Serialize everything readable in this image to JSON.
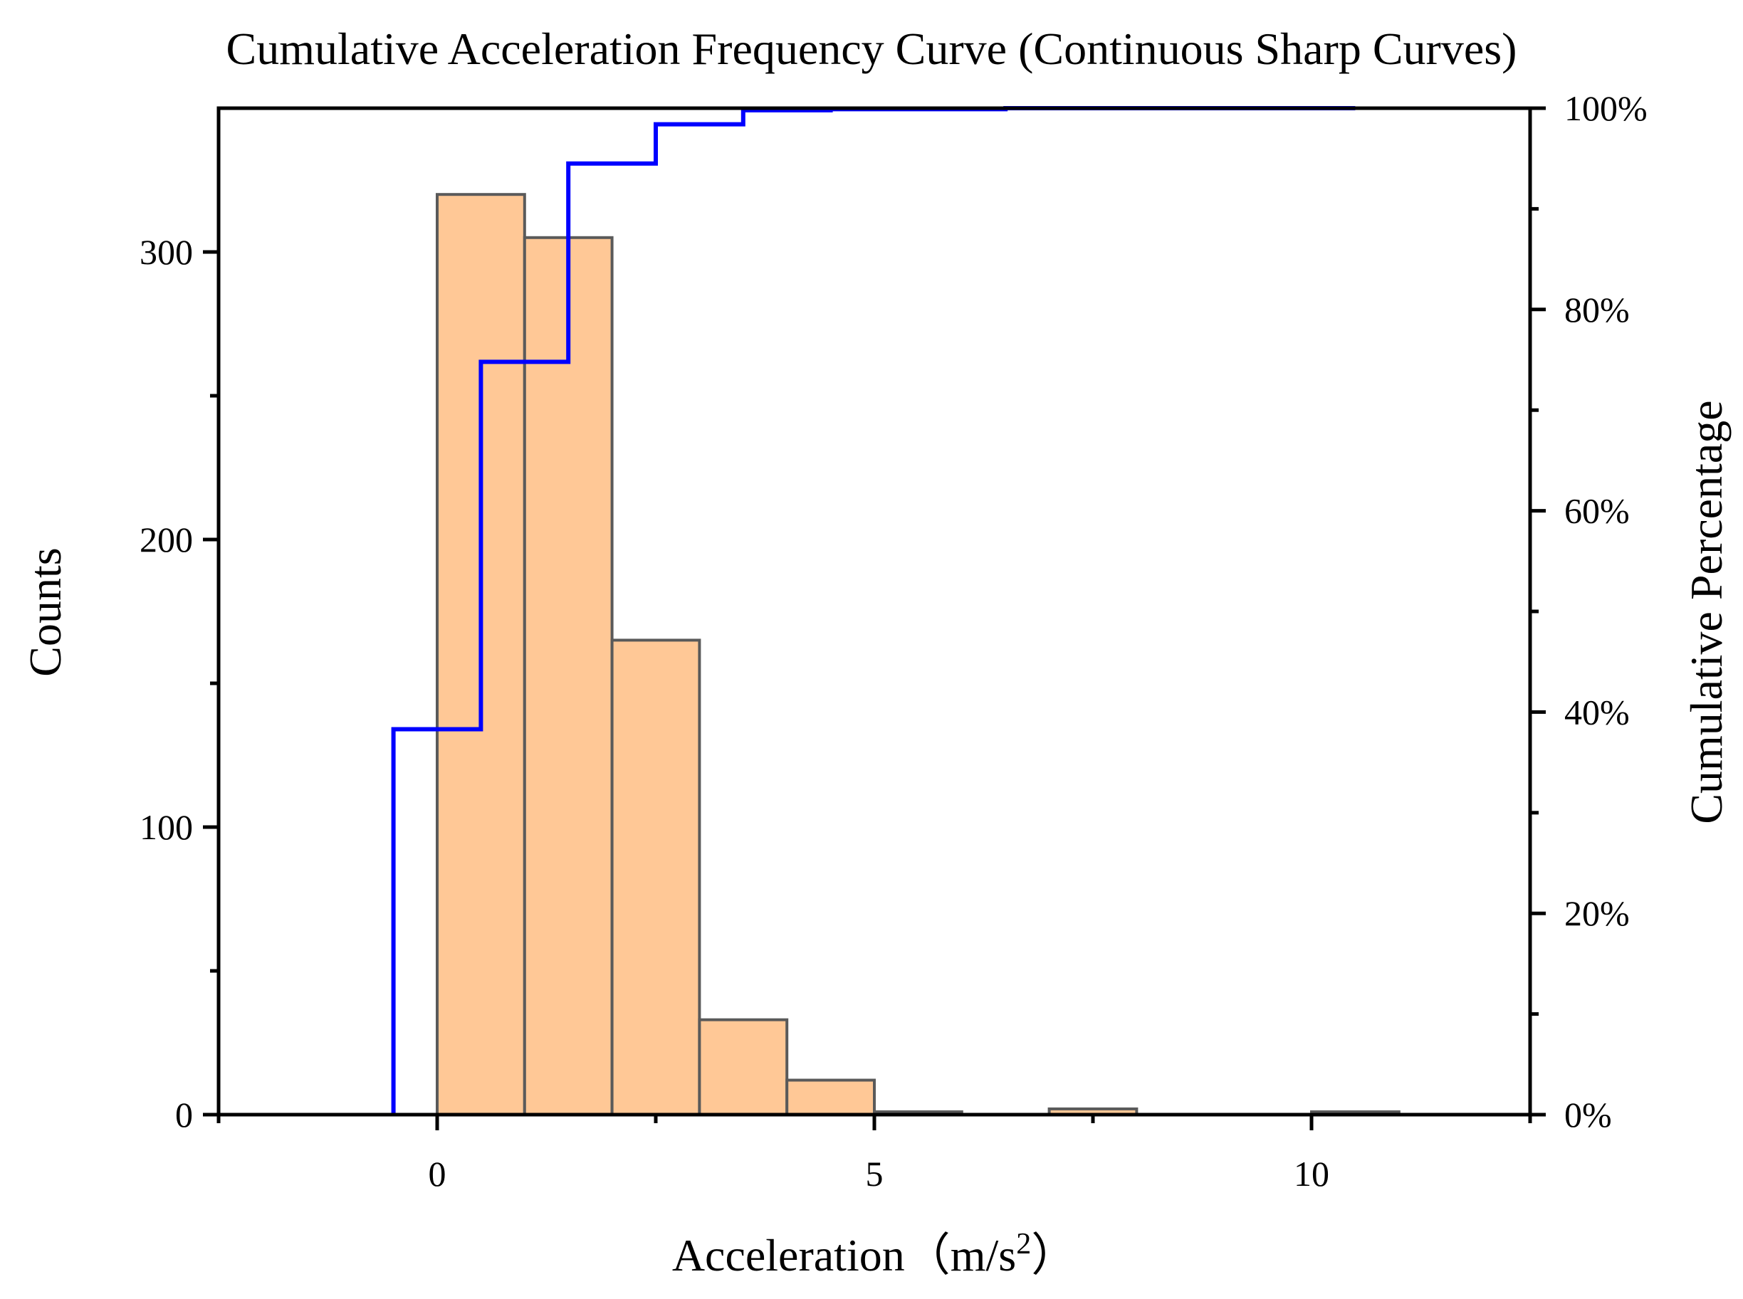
{
  "chart_data": {
    "type": "bar",
    "title": "Cumulative Acceleration Frequency Curve (Continuous Sharp Curves)",
    "xlabel": "Acceleration",
    "xlabel_unit_prefix": "（m/s",
    "xlabel_unit_exp": "2",
    "xlabel_unit_suffix": "）",
    "ylabel_left": "Counts",
    "ylabel_right": "Cumulative Percentage",
    "xlim": [
      -2.5,
      12.5
    ],
    "ylim": [
      0,
      350
    ],
    "y2lim": [
      0,
      100
    ],
    "x_ticks": [
      0,
      5,
      10
    ],
    "x_tick_labels": [
      "0",
      "5",
      "10"
    ],
    "x_minor_ticks": [
      -2.5,
      2.5,
      7.5,
      12.5
    ],
    "y_ticks": [
      0,
      100,
      200,
      300
    ],
    "y_tick_labels": [
      "0",
      "100",
      "200",
      "300"
    ],
    "y_minor_ticks": [
      50,
      150,
      250
    ],
    "y2_ticks": [
      0,
      20,
      40,
      60,
      80,
      100
    ],
    "y2_tick_labels": [
      "0%",
      "20%",
      "40%",
      "60%",
      "80%",
      "100%"
    ],
    "y2_minor_ticks": [
      10,
      30,
      50,
      70,
      90
    ],
    "histogram": {
      "name": "Counts",
      "color": "#ffc896",
      "edge_color": "#5a5a5a",
      "bins": [
        {
          "start": 0,
          "end": 1,
          "count": 320
        },
        {
          "start": 1,
          "end": 2,
          "count": 305
        },
        {
          "start": 2,
          "end": 3,
          "count": 165
        },
        {
          "start": 3,
          "end": 4,
          "count": 33
        },
        {
          "start": 4,
          "end": 5,
          "count": 12
        },
        {
          "start": 5,
          "end": 6,
          "count": 1
        },
        {
          "start": 6,
          "end": 7,
          "count": 0
        },
        {
          "start": 7,
          "end": 8,
          "count": 2
        },
        {
          "start": 8,
          "end": 9,
          "count": 0
        },
        {
          "start": 9,
          "end": 10,
          "count": 0
        },
        {
          "start": 10,
          "end": 11,
          "count": 1
        }
      ]
    },
    "cumulative": {
      "name": "Cumulative Percentage",
      "color": "#0000ff",
      "steps": [
        {
          "x0": -0.5,
          "x1": 0.5,
          "pct": 38.3
        },
        {
          "x0": 0.5,
          "x1": 1.5,
          "pct": 74.8
        },
        {
          "x0": 1.5,
          "x1": 2.5,
          "pct": 94.5
        },
        {
          "x0": 2.5,
          "x1": 3.5,
          "pct": 98.4
        },
        {
          "x0": 3.5,
          "x1": 4.5,
          "pct": 99.8
        },
        {
          "x0": 4.5,
          "x1": 5.5,
          "pct": 99.9
        },
        {
          "x0": 5.5,
          "x1": 6.5,
          "pct": 99.9
        },
        {
          "x0": 6.5,
          "x1": 7.5,
          "pct": 100
        },
        {
          "x0": 7.5,
          "x1": 8.5,
          "pct": 100
        },
        {
          "x0": 8.5,
          "x1": 9.5,
          "pct": 100
        },
        {
          "x0": 9.5,
          "x1": 10.5,
          "pct": 100
        }
      ]
    }
  }
}
